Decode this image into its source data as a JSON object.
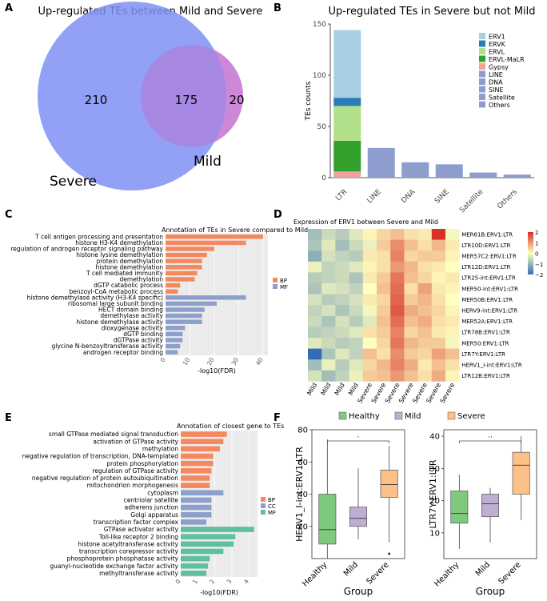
{
  "panel_labels": [
    "A",
    "B",
    "C",
    "D",
    "E",
    "F"
  ],
  "chart_data": [
    {
      "panel": "A",
      "type": "venn",
      "title": "Up-regulated TEs between Mild and Severe",
      "sets": [
        {
          "name": "Severe",
          "color": "#7f8ff3"
        },
        {
          "name": "Mild",
          "color": "#c77ed3"
        }
      ],
      "regions": {
        "severe_only": "210",
        "both": "175",
        "mild_only": "20"
      }
    },
    {
      "panel": "B",
      "type": "bar",
      "title": "Up-regulated TEs in Severe but not Mild",
      "ylabel": "TEs counts",
      "ylim": [
        0,
        150
      ],
      "yticks": [
        "0",
        "50",
        "100",
        "150"
      ],
      "categories": [
        "LTR",
        "LINE",
        "DNA",
        "SINE",
        "Satellite",
        "Others"
      ],
      "legend": [
        {
          "name": "ERV1",
          "color": "#a6cfe4"
        },
        {
          "name": "ERVK",
          "color": "#2c7bb6"
        },
        {
          "name": "ERVL",
          "color": "#b2df8a"
        },
        {
          "name": "ERVL-MaLR",
          "color": "#33a02c"
        },
        {
          "name": "Gypsy",
          "color": "#f4a0a0"
        },
        {
          "name": "LINE",
          "color": "#8e9cce"
        },
        {
          "name": "DNA",
          "color": "#8e9cce"
        },
        {
          "name": "SINE",
          "color": "#8e9cce"
        },
        {
          "name": "Satellite",
          "color": "#8e9cce"
        },
        {
          "name": "Others",
          "color": "#8e9cce"
        }
      ],
      "stacks": [
        {
          "category": "LTR",
          "parts": [
            {
              "name": "Gypsy",
              "value": 6
            },
            {
              "name": "ERVL-MaLR",
              "value": 30
            },
            {
              "name": "ERVL",
              "value": 34
            },
            {
              "name": "ERVK",
              "value": 8
            },
            {
              "name": "ERV1",
              "value": 66
            }
          ]
        },
        {
          "category": "LINE",
          "parts": [
            {
              "name": "LINE",
              "value": 29
            }
          ]
        },
        {
          "category": "DNA",
          "parts": [
            {
              "name": "DNA",
              "value": 15
            }
          ]
        },
        {
          "category": "SINE",
          "parts": [
            {
              "name": "SINE",
              "value": 13
            }
          ]
        },
        {
          "category": "Satellite",
          "parts": [
            {
              "name": "Satellite",
              "value": 5
            }
          ]
        },
        {
          "category": "Others",
          "parts": [
            {
              "name": "Others",
              "value": 3
            }
          ]
        }
      ]
    },
    {
      "panel": "C",
      "type": "bar",
      "orientation": "horizontal",
      "title": "Annotation of TEs in Severe compared to Mild",
      "xlabel": "-log10(FDR)",
      "xlim": [
        0,
        42
      ],
      "xticks": [
        "0",
        "10",
        "20",
        "30",
        "40"
      ],
      "legend": [
        {
          "name": "BP",
          "color": "#f4895f"
        },
        {
          "name": "MF",
          "color": "#8da0cb"
        }
      ],
      "bars": [
        {
          "label": "T cell antigen processing and presentation",
          "value": 40,
          "group": "BP"
        },
        {
          "label": "histone H3-K4 demethylation",
          "value": 33,
          "group": "BP"
        },
        {
          "label": "regulation of androgen receptor signaling pathway",
          "value": 20,
          "group": "BP"
        },
        {
          "label": "histone lysine demethylation",
          "value": 17,
          "group": "BP"
        },
        {
          "label": "protein demethylation",
          "value": 15,
          "group": "BP"
        },
        {
          "label": "histone demethylation",
          "value": 15,
          "group": "BP"
        },
        {
          "label": "T cell mediated immunity",
          "value": 13,
          "group": "BP"
        },
        {
          "label": "demethylation",
          "value": 12,
          "group": "BP"
        },
        {
          "label": "dGTP catabolic process",
          "value": 6,
          "group": "BP"
        },
        {
          "label": "benzoyl-CoA metabolic process",
          "value": 5,
          "group": "BP"
        },
        {
          "label": "histone demethylase activity (H3-K4 specific)",
          "value": 33,
          "group": "MF"
        },
        {
          "label": "ribosomal large subunit binding",
          "value": 21,
          "group": "MF"
        },
        {
          "label": "HECT domain binding",
          "value": 16,
          "group": "MF"
        },
        {
          "label": "demethylase activity",
          "value": 15,
          "group": "MF"
        },
        {
          "label": "histone demethylase activity",
          "value": 15,
          "group": "MF"
        },
        {
          "label": "dioxygenase activity",
          "value": 8,
          "group": "MF"
        },
        {
          "label": "dGTP binding",
          "value": 7,
          "group": "MF"
        },
        {
          "label": "dGTPase activity",
          "value": 7,
          "group": "MF"
        },
        {
          "label": "glycine N-benzoyltransferase activity",
          "value": 6,
          "group": "MF"
        },
        {
          "label": "androgen receptor binding",
          "value": 5,
          "group": "MF"
        }
      ]
    },
    {
      "panel": "D",
      "type": "heatmap",
      "title": "Expression of ERV1 between Severe and Mild",
      "columns": [
        "Mild",
        "Mild",
        "Mild",
        "Mild",
        "Severe",
        "Severe",
        "Severe",
        "Severe",
        "Severe",
        "Severe",
        "Severe"
      ],
      "rows": [
        "MER61B:ERV1:LTR",
        "LTR10D:ERV1:LTR",
        "MER57C2:ERV1:LTR",
        "LTR12D:ERV1:LTR",
        "LTR25-int:ERV1:LTR",
        "MER50-int:ERV1:LTR",
        "MER50B:ERV1:LTR",
        "HERV9-int:ERV1:LTR",
        "MER52A:ERV1:LTR",
        "LTR78B:ERV1:LTR",
        "MER50:ERV1:LTR",
        "LTR7Y:ERV1:LTR",
        "HERV1_I-int:ERV1:LTR",
        "LTR12B:ERV1:LTR"
      ],
      "scale": {
        "min": -2,
        "max": 2,
        "ticks": [
          "2",
          "1",
          "0",
          "−1",
          "−2"
        ]
      },
      "values": [
        [
          -0.9,
          -0.5,
          -0.7,
          -0.3,
          0.1,
          0.4,
          0.6,
          0.3,
          0.2,
          2.2,
          -0.1
        ],
        [
          -0.8,
          -0.3,
          -0.9,
          -0.5,
          -0.2,
          0.5,
          1.1,
          0.6,
          0.3,
          0.7,
          0.2
        ],
        [
          -1.1,
          -0.4,
          -0.6,
          -0.7,
          0.2,
          0.3,
          1.2,
          0.4,
          0.5,
          0.5,
          0.1
        ],
        [
          -0.2,
          -0.6,
          -0.5,
          -0.3,
          0.1,
          0.3,
          1.0,
          0.7,
          0.3,
          0.2,
          0.0
        ],
        [
          -0.7,
          -0.6,
          -0.5,
          -0.8,
          0.2,
          0.5,
          1.3,
          0.6,
          0.4,
          0.1,
          0.2
        ],
        [
          -0.8,
          -0.3,
          -0.4,
          -0.6,
          0.0,
          0.6,
          1.4,
          0.3,
          0.9,
          0.2,
          0.1
        ],
        [
          -0.4,
          -0.7,
          -0.6,
          -0.4,
          0.2,
          0.4,
          1.5,
          0.5,
          0.7,
          0.3,
          0.0
        ],
        [
          -0.6,
          -0.4,
          -0.8,
          -0.5,
          -0.1,
          0.5,
          1.6,
          0.8,
          0.6,
          0.4,
          0.1
        ],
        [
          -0.5,
          -0.8,
          -0.4,
          -0.7,
          -0.3,
          0.6,
          1.4,
          0.6,
          0.8,
          0.3,
          0.2
        ],
        [
          -0.7,
          -0.6,
          -0.5,
          -0.3,
          0.3,
          0.5,
          1.2,
          0.4,
          0.6,
          0.2,
          0.1
        ],
        [
          -0.3,
          -0.5,
          -0.7,
          -0.6,
          0.0,
          0.4,
          1.3,
          0.7,
          0.5,
          0.5,
          -0.1
        ],
        [
          -2.0,
          -0.8,
          -0.3,
          -0.6,
          0.6,
          0.3,
          1.1,
          0.5,
          0.4,
          0.9,
          0.6
        ],
        [
          -0.9,
          -0.2,
          -0.7,
          -0.3,
          0.4,
          0.7,
          1.2,
          0.8,
          0.2,
          0.6,
          0.3
        ],
        [
          -0.4,
          -0.9,
          -0.6,
          -0.2,
          0.5,
          0.6,
          1.0,
          0.6,
          0.3,
          0.8,
          0.1
        ]
      ]
    },
    {
      "panel": "E",
      "type": "bar",
      "orientation": "horizontal",
      "title": "Annotation of closest gene to TEs",
      "xlabel": "-log10(FDR)",
      "xlim": [
        0,
        4.5
      ],
      "xticks": [
        "0",
        "1",
        "2",
        "3",
        "4"
      ],
      "legend": [
        {
          "name": "BP",
          "color": "#f4895f"
        },
        {
          "name": "CC",
          "color": "#8da0cb"
        },
        {
          "name": "MF",
          "color": "#5fbf9f"
        }
      ],
      "bars": [
        {
          "label": "small GTPase mediated signal transduction",
          "value": 2.7,
          "group": "BP"
        },
        {
          "label": "activation of GTPase activity",
          "value": 2.5,
          "group": "BP"
        },
        {
          "label": "methylation",
          "value": 2.3,
          "group": "BP"
        },
        {
          "label": "negative regulation of transcription, DNA-templated",
          "value": 1.9,
          "group": "BP"
        },
        {
          "label": "protein phosphorylation",
          "value": 1.9,
          "group": "BP"
        },
        {
          "label": "regulation of GTPase activity",
          "value": 1.8,
          "group": "BP"
        },
        {
          "label": "negative regulation of protein autoubiquitination",
          "value": 1.7,
          "group": "BP"
        },
        {
          "label": "mitochondrion morphogenesis",
          "value": 1.7,
          "group": "BP"
        },
        {
          "label": "cytoplasm",
          "value": 2.5,
          "group": "CC"
        },
        {
          "label": "centriolar satellite",
          "value": 1.8,
          "group": "CC"
        },
        {
          "label": "adherens junction",
          "value": 1.8,
          "group": "CC"
        },
        {
          "label": "Golgi apparatus",
          "value": 1.8,
          "group": "CC"
        },
        {
          "label": "transcription factor complex",
          "value": 1.5,
          "group": "CC"
        },
        {
          "label": "GTPase activator activity",
          "value": 4.3,
          "group": "MF"
        },
        {
          "label": "Toll-like receptor 2 binding",
          "value": 3.2,
          "group": "MF"
        },
        {
          "label": "histone acetyltransferase activity",
          "value": 3.1,
          "group": "MF"
        },
        {
          "label": "transcription corepressor activity",
          "value": 2.5,
          "group": "MF"
        },
        {
          "label": "phosphoprotein phosphatase activity",
          "value": 1.7,
          "group": "MF"
        },
        {
          "label": "guanyl-nucleotide exchange factor activity",
          "value": 1.6,
          "group": "MF"
        },
        {
          "label": "methyltransferase activity",
          "value": 1.5,
          "group": "MF"
        }
      ]
    },
    {
      "panel": "F",
      "type": "box",
      "legend": [
        {
          "name": "Healthy",
          "color": "#7fc97f"
        },
        {
          "name": "Mild",
          "color": "#beaed4"
        },
        {
          "name": "Severe",
          "color": "#fdc086"
        }
      ],
      "plots": [
        {
          "ylabel": "HERV1_I-int:ERV1:LTR",
          "xlabel": "Group",
          "ylim": [
            0,
            80
          ],
          "yticks": [
            "20",
            "40",
            "60",
            "80"
          ],
          "groups": [
            "Healthy",
            "Mild",
            "Severe"
          ],
          "boxes": [
            {
              "group": "Healthy",
              "min": 0,
              "q1": 9,
              "median": 18,
              "q3": 40,
              "max": 74
            },
            {
              "group": "Mild",
              "min": 12,
              "q1": 20,
              "median": 25,
              "q3": 32,
              "max": 56
            },
            {
              "group": "Severe",
              "min": 10,
              "q1": 38,
              "median": 46,
              "q3": 55,
              "max": 70,
              "outliers": [
                3
              ]
            }
          ],
          "significance": "·"
        },
        {
          "ylabel": "LTR7Y:ERV1:LTR",
          "xlabel": "Group",
          "ylim": [
            2,
            42
          ],
          "yticks": [
            "10",
            "20",
            "30",
            "40"
          ],
          "groups": [
            "Healthy",
            "Mild",
            "Severe"
          ],
          "boxes": [
            {
              "group": "Healthy",
              "min": 5,
              "q1": 13,
              "median": 16,
              "q3": 23,
              "max": 28
            },
            {
              "group": "Mild",
              "min": 7,
              "q1": 15,
              "median": 19,
              "q3": 22,
              "max": 24
            },
            {
              "group": "Severe",
              "min": 14,
              "q1": 22,
              "median": 31,
              "q3": 35,
              "max": 40
            }
          ],
          "significance": "··"
        }
      ]
    }
  ]
}
